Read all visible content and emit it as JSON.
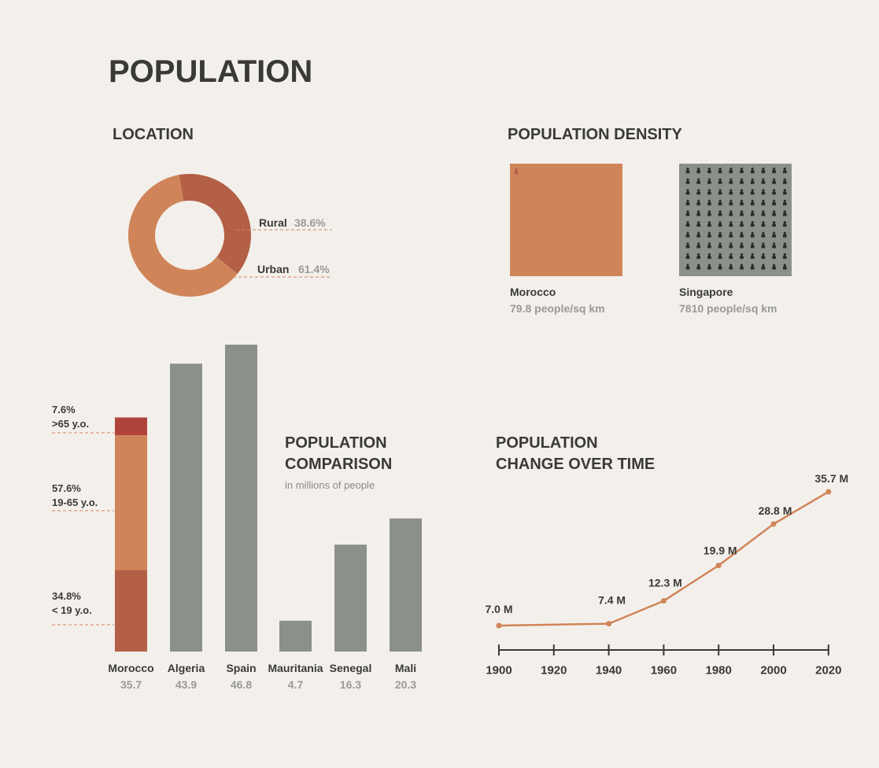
{
  "title": "POPULATION",
  "location": {
    "title": "LOCATION",
    "rural": {
      "label": "Rural",
      "value": "38.6%"
    },
    "urban": {
      "label": "Urban",
      "value": "61.4%"
    }
  },
  "density": {
    "title": "POPULATION DENSITY",
    "morocco": {
      "name": "Morocco",
      "value": "79.8 people/sq km"
    },
    "singapore": {
      "name": "Singapore",
      "value": "7810 people/sq km"
    }
  },
  "comparison": {
    "title_line1": "POPULATION",
    "title_line2": "COMPARISON",
    "subtitle": "in millions of people"
  },
  "change": {
    "title_line1": "POPULATION",
    "title_line2": "CHANGE OVER TIME"
  },
  "age_breakdown": [
    {
      "pct": "7.6%",
      "range": ">65 y.o."
    },
    {
      "pct": "57.6%",
      "range": "19-65 y.o."
    },
    {
      "pct": "34.8%",
      "range": "< 19 y.o."
    }
  ],
  "colors": {
    "urban": "#d08459",
    "rural": "#b36046",
    "elderly": "#b1433d",
    "gray": "#8b9189",
    "person_dark": "#2b2b28"
  },
  "chart_data": [
    {
      "type": "pie",
      "title": "LOCATION",
      "categories": [
        "Rural",
        "Urban"
      ],
      "values": [
        38.6,
        61.4
      ]
    },
    {
      "type": "bar",
      "title": "POPULATION COMPARISON",
      "subtitle": "in millions of people",
      "categories": [
        "Morocco",
        "Algeria",
        "Spain",
        "Mauritania",
        "Senegal",
        "Mali"
      ],
      "values": [
        35.7,
        43.9,
        46.8,
        4.7,
        16.3,
        20.3
      ],
      "value_labels": [
        "35.7",
        "43.9",
        "46.8",
        "4.7",
        "16.3",
        "20.3"
      ],
      "morocco_age_split_pct": [
        34.8,
        57.6,
        7.6
      ]
    },
    {
      "type": "line",
      "title": "POPULATION CHANGE OVER TIME",
      "x": [
        1900,
        1940,
        1960,
        1980,
        2000,
        2020
      ],
      "y": [
        7.0,
        7.4,
        12.3,
        19.9,
        28.8,
        35.7
      ],
      "labels": [
        "7.0 M",
        "7.4 M",
        "12.3 M",
        "19.9 M",
        "28.8 M",
        "35.7 M"
      ],
      "xticks": [
        "1900",
        "1920",
        "1940",
        "1960",
        "1980",
        "2000",
        "2020"
      ]
    },
    {
      "type": "bar",
      "title": "POPULATION DENSITY",
      "categories": [
        "Morocco",
        "Singapore"
      ],
      "values": [
        79.8,
        7810
      ]
    }
  ]
}
